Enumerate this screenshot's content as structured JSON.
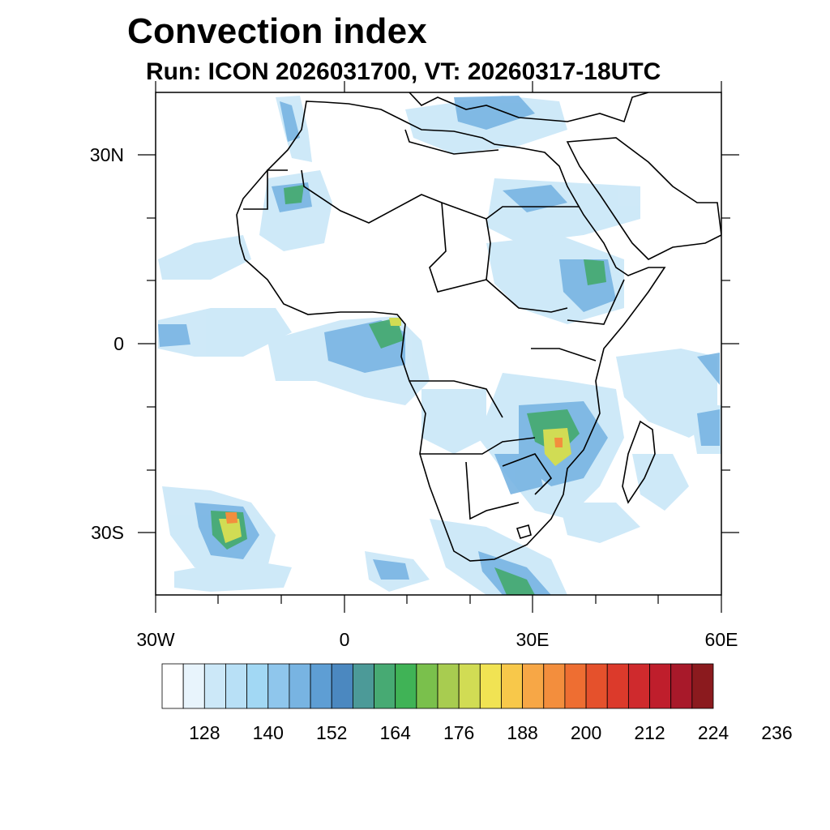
{
  "map": {
    "title": "Convection index",
    "subtitle": "Run: ICON 2026031700,  VT: 20260317-18UTC",
    "lat_labels": [
      "30N",
      "0",
      "30S"
    ],
    "lon_labels": [
      "30W",
      "0",
      "30E",
      "60E"
    ],
    "extent": {
      "lon_min": -30,
      "lon_max": 60,
      "lat_min": -40,
      "lat_max": 40
    }
  },
  "colorbar": {
    "labels": [
      "128",
      "140",
      "152",
      "164",
      "176",
      "188",
      "200",
      "212",
      "224",
      "236"
    ],
    "colors": [
      "#ffffff",
      "#e8f4fc",
      "#cce8f8",
      "#b8e0f6",
      "#a2d8f4",
      "#8fc6ec",
      "#78b4e2",
      "#5e9ed4",
      "#4b88c0",
      "#4c9a98",
      "#47aa73",
      "#40b356",
      "#7ac04c",
      "#a8cc50",
      "#d1dc54",
      "#f1e353",
      "#f8c84a",
      "#f7a746",
      "#f38e3d",
      "#ee6e32",
      "#e5512c",
      "#dc3a2b",
      "#cf2a2d",
      "#bf1e2c",
      "#a8192a",
      "#8b1a1e"
    ]
  }
}
